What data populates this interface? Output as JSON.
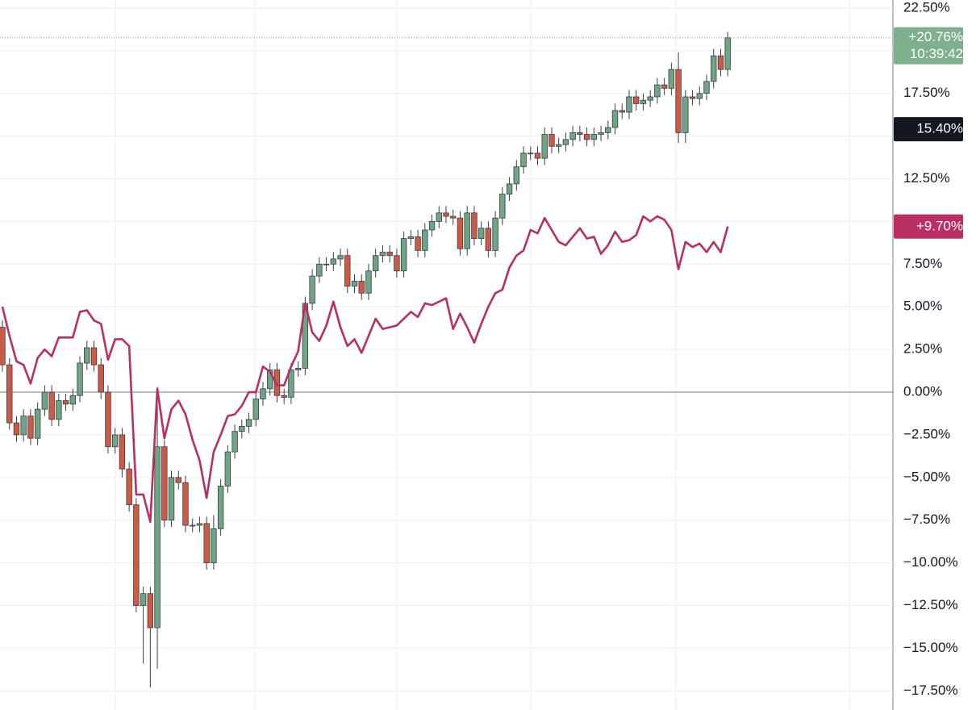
{
  "chart_data": {
    "type": "candlestick",
    "candles": {
      "open": [
        3.8,
        1.6,
        -1.8,
        -2.5,
        -1.4,
        -2.7,
        -1.0,
        0.0,
        -1.6,
        -0.5,
        -0.7,
        -0.2,
        1.7,
        2.6,
        1.6,
        0.0,
        -3.2,
        -2.5,
        -4.5,
        -6.6,
        -12.5,
        -11.8,
        -13.8,
        -3.2,
        -7.5,
        -5.0,
        -5.3,
        -7.8,
        -7.8,
        -7.7,
        -10.0,
        -8.0,
        -5.5,
        -3.5,
        -2.3,
        -2.0,
        -1.6,
        -0.4,
        0.2,
        1.3,
        -0.2,
        -0.3,
        1.3,
        1.4,
        5.2,
        6.8,
        7.5,
        7.5,
        7.8,
        8.0,
        6.2,
        6.5,
        5.8,
        7.1,
        8.0,
        8.2,
        8.0,
        7.1,
        9.0,
        9.1,
        8.3,
        9.5,
        10.0,
        10.5,
        10.3,
        10.2,
        8.4,
        10.5,
        9.0,
        9.6,
        8.3,
        10.2,
        11.6,
        12.2,
        13.2,
        14.0,
        14.0,
        13.7,
        15.1,
        14.4,
        14.5,
        14.8,
        15.2,
        15.1,
        14.8,
        15.1,
        15.2,
        15.5,
        16.5,
        16.4,
        17.3,
        16.9,
        17.1,
        17.3,
        18.0,
        17.8,
        18.9,
        15.2,
        17.3,
        17.2,
        17.5,
        18.2,
        19.7,
        18.9
      ],
      "high": [
        4.2,
        2.0,
        -1.4,
        -1.0,
        -1.0,
        -0.6,
        0.4,
        0.4,
        -0.1,
        -0.1,
        0.2,
        2.1,
        3.0,
        3.0,
        2.0,
        0.4,
        -2.1,
        -2.1,
        -4.1,
        -6.2,
        -11.4,
        -11.4,
        0.3,
        -2.8,
        -4.6,
        -4.6,
        -4.9,
        -7.4,
        -7.3,
        -7.3,
        -7.2,
        -5.1,
        -3.1,
        -1.9,
        -1.6,
        -1.2,
        0.0,
        0.6,
        1.7,
        1.7,
        0.2,
        1.7,
        1.8,
        5.6,
        7.2,
        7.9,
        7.9,
        8.2,
        8.4,
        8.4,
        6.9,
        6.9,
        7.5,
        8.4,
        8.6,
        8.6,
        8.4,
        9.4,
        9.5,
        9.5,
        9.9,
        10.4,
        10.9,
        10.9,
        10.7,
        10.6,
        10.9,
        10.9,
        10.0,
        10.0,
        10.6,
        12.0,
        12.6,
        13.6,
        14.4,
        14.4,
        14.4,
        15.5,
        15.5,
        14.9,
        15.2,
        15.6,
        15.6,
        15.5,
        15.5,
        15.6,
        15.9,
        16.9,
        16.9,
        17.7,
        17.7,
        17.5,
        17.7,
        18.4,
        18.4,
        19.3,
        19.9,
        17.7,
        17.7,
        17.9,
        18.6,
        20.1,
        20.1,
        21.1
      ],
      "low": [
        1.2,
        -2.2,
        -2.9,
        -2.9,
        -3.1,
        -3.1,
        -1.4,
        -2.0,
        -2.0,
        -1.1,
        -1.1,
        -0.6,
        1.3,
        1.2,
        -0.4,
        -3.6,
        -3.6,
        -5.0,
        -7.0,
        -12.9,
        -15.9,
        -17.3,
        -16.2,
        -7.9,
        -7.9,
        -5.7,
        -8.2,
        -8.2,
        -8.2,
        -10.4,
        -10.4,
        -8.4,
        -5.9,
        -3.9,
        -2.7,
        -2.4,
        -2.0,
        -0.8,
        -0.2,
        -0.6,
        -0.7,
        -0.7,
        0.9,
        1.0,
        4.8,
        6.4,
        7.1,
        7.1,
        7.4,
        5.8,
        5.8,
        5.4,
        5.4,
        6.7,
        7.6,
        7.6,
        6.7,
        6.7,
        8.6,
        7.9,
        7.9,
        9.1,
        9.6,
        9.9,
        9.8,
        8.0,
        8.0,
        8.6,
        8.6,
        7.9,
        7.9,
        9.8,
        11.2,
        11.8,
        12.8,
        13.6,
        13.3,
        13.3,
        14.0,
        14.0,
        14.1,
        14.4,
        14.7,
        14.4,
        14.4,
        14.7,
        14.8,
        15.1,
        16.0,
        16.0,
        16.5,
        16.5,
        16.7,
        16.9,
        17.4,
        17.4,
        14.6,
        14.6,
        16.8,
        16.8,
        17.1,
        17.8,
        18.5,
        18.5
      ],
      "close": [
        1.6,
        -1.8,
        -2.5,
        -1.4,
        -2.7,
        -1.0,
        0.0,
        -1.6,
        -0.5,
        -0.7,
        -0.2,
        1.7,
        2.6,
        1.6,
        0.0,
        -3.2,
        -2.5,
        -4.5,
        -6.6,
        -12.5,
        -11.8,
        -13.8,
        -3.2,
        -7.5,
        -5.0,
        -5.3,
        -7.8,
        -7.8,
        -7.7,
        -10.0,
        -8.0,
        -5.5,
        -3.5,
        -2.3,
        -2.0,
        -1.6,
        -0.4,
        0.2,
        1.3,
        -0.2,
        -0.3,
        1.3,
        1.4,
        5.2,
        6.8,
        7.5,
        7.5,
        7.8,
        8.0,
        6.2,
        6.5,
        5.8,
        7.1,
        8.0,
        8.2,
        8.0,
        7.1,
        9.0,
        9.1,
        8.3,
        9.5,
        10.0,
        10.5,
        10.3,
        10.2,
        8.4,
        10.5,
        9.0,
        9.6,
        8.3,
        10.2,
        11.6,
        12.2,
        13.2,
        14.0,
        14.0,
        13.7,
        15.1,
        14.4,
        14.5,
        14.8,
        15.2,
        15.1,
        14.8,
        15.1,
        15.2,
        15.5,
        16.5,
        16.4,
        17.3,
        16.9,
        17.1,
        17.3,
        18.0,
        17.8,
        18.9,
        15.2,
        17.3,
        17.2,
        17.5,
        18.2,
        19.7,
        18.9,
        20.76
      ],
      "up_color": "#6fa484",
      "down_color": "#cd5a44"
    },
    "series": [
      {
        "color": "#b92f63",
        "values": [
          5.0,
          3.3,
          1.8,
          1.6,
          0.5,
          2.0,
          2.5,
          2.1,
          3.2,
          3.2,
          3.2,
          4.7,
          4.8,
          4.2,
          4.0,
          1.9,
          3.1,
          3.1,
          2.7,
          -6.0,
          -6.0,
          -7.6,
          0.2,
          -2.7,
          -1.0,
          -0.5,
          -1.3,
          -2.8,
          -4.0,
          -6.2,
          -3.5,
          -2.5,
          -1.4,
          -1.3,
          -0.8,
          0.0,
          0.0,
          1.5,
          1.2,
          0.4,
          0.4,
          1.5,
          2.4,
          5.2,
          3.5,
          3.0,
          3.9,
          5.3,
          3.8,
          2.7,
          3.1,
          2.3,
          3.3,
          4.3,
          3.7,
          3.8,
          3.9,
          4.3,
          4.7,
          4.4,
          5.2,
          5.1,
          5.3,
          5.5,
          3.7,
          4.6,
          3.8,
          2.9,
          4.0,
          5.0,
          5.8,
          6.0,
          7.3,
          8.0,
          8.3,
          9.5,
          9.3,
          10.2,
          9.5,
          8.8,
          8.6,
          9.1,
          9.6,
          9.0,
          9.1,
          8.1,
          8.6,
          9.4,
          8.8,
          8.9,
          9.2,
          10.3,
          10.0,
          10.3,
          10.1,
          9.5,
          7.2,
          8.8,
          8.5,
          8.7,
          8.2,
          8.8,
          8.2,
          9.7
        ]
      }
    ],
    "ylim": [
      -18.62,
      22.97
    ],
    "yticks": [
      {
        "value": 22.5,
        "label": "22.50%"
      },
      {
        "value": 20,
        "label": "20.00%"
      },
      {
        "value": 17.5,
        "label": "17.50%"
      },
      {
        "value": 15,
        "label": "15.00%"
      },
      {
        "value": 12.5,
        "label": "12.50%"
      },
      {
        "value": 10,
        "label": "10.00%"
      },
      {
        "value": 7.5,
        "label": "7.50%"
      },
      {
        "value": 5,
        "label": "5.00%"
      },
      {
        "value": 2.5,
        "label": "2.50%"
      },
      {
        "value": 0,
        "label": "0.00%"
      },
      {
        "value": -2.5,
        "label": "−2.50%"
      },
      {
        "value": -5,
        "label": "−5.00%"
      },
      {
        "value": -7.5,
        "label": "−7.50%"
      },
      {
        "value": -10,
        "label": "−10.00%"
      },
      {
        "value": -12.5,
        "label": "−12.50%"
      },
      {
        "value": -15,
        "label": "−15.00%"
      },
      {
        "value": -17.5,
        "label": "−17.50%"
      }
    ],
    "grid": true,
    "price_labels": [
      {
        "value": 20.76,
        "label": "+20.76%",
        "time": "10:39:42",
        "color": "#7fb08e"
      },
      {
        "value": 15.4,
        "label": "15.40%",
        "color": "#131722"
      },
      {
        "value": 9.7,
        "label": "+9.70%",
        "color": "#b92f63"
      }
    ]
  }
}
